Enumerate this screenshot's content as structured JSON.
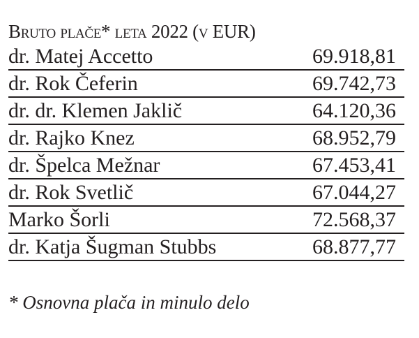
{
  "title": "Bruto plače* leta 2022 (v EUR)",
  "rows": [
    {
      "name": "dr. Matej Accetto",
      "value": "69.918,81"
    },
    {
      "name": "dr. Rok Čeferin",
      "value": "69.742,73"
    },
    {
      "name": "dr. dr. Klemen Jaklič",
      "value": "64.120,36"
    },
    {
      "name": "dr. Rajko Knez",
      "value": "68.952,79"
    },
    {
      "name": "dr. Špelca Mežnar",
      "value": "67.453,41"
    },
    {
      "name": "dr. Rok Svetlič",
      "value": "67.044,27"
    },
    {
      "name": "Marko Šorli",
      "value": "72.568,37"
    },
    {
      "name": "dr. Katja Šugman Stubbs",
      "value": "68.877,77"
    }
  ],
  "footnote": "* Osnovna plača in minulo delo"
}
